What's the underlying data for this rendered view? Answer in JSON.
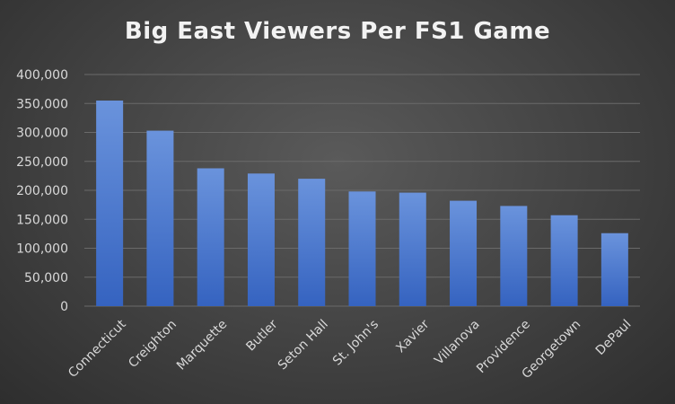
{
  "chart_data": {
    "type": "bar",
    "title": "Big East Viewers Per FS1 Game",
    "xlabel": "",
    "ylabel": "",
    "categories": [
      "Connecticut",
      "Creighton",
      "Marquette",
      "Butler",
      "Seton Hall",
      "St. John's",
      "Xavier",
      "Villanova",
      "Providence",
      "Georgetown",
      "DePaul"
    ],
    "values": [
      355000,
      303000,
      238000,
      229000,
      220000,
      198000,
      196000,
      182000,
      173000,
      157000,
      126000
    ],
    "ylim": [
      0,
      400000
    ],
    "yticks": [
      "0",
      "50,000",
      "100,000",
      "150,000",
      "200,000",
      "250,000",
      "300,000",
      "350,000",
      "400,000"
    ],
    "grid": true,
    "legend": "none",
    "bar_color": "#4472c4"
  }
}
